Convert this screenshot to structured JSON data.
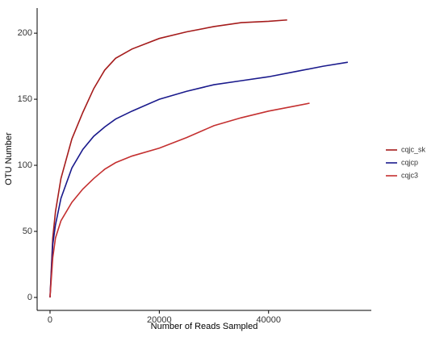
{
  "chart_data": {
    "type": "line",
    "x_label": "Number of Reads Sampled",
    "y_label": "OTU Number",
    "xlim": [
      -2360,
      58800
    ],
    "ylim": [
      -9.8,
      219
    ],
    "xticks": [
      0,
      20000,
      40000
    ],
    "yticks": [
      0,
      50,
      100,
      150,
      200
    ],
    "legend": "right",
    "series": [
      {
        "name": "cqjc_sk",
        "color": "#a51c1c",
        "x": [
          0,
          500,
          1000,
          2000,
          4000,
          6000,
          8000,
          10000,
          12000,
          15000,
          20000,
          25000,
          30000,
          35000,
          40000,
          43400
        ],
        "values": [
          0,
          45,
          65,
          90,
          120,
          140,
          158,
          172,
          181,
          188,
          196,
          201,
          205,
          208,
          209,
          210
        ]
      },
      {
        "name": "cqjcp",
        "color": "#1a1a8c",
        "x": [
          0,
          500,
          1000,
          2000,
          4000,
          6000,
          8000,
          10000,
          12000,
          15000,
          20000,
          25000,
          30000,
          35000,
          40000,
          45000,
          50000,
          54500
        ],
        "values": [
          0,
          40,
          55,
          75,
          98,
          112,
          122,
          129,
          135,
          141,
          150,
          156,
          161,
          164,
          167,
          171,
          175,
          178
        ]
      },
      {
        "name": "cqjc3",
        "color": "#c43030",
        "x": [
          0,
          500,
          1000,
          2000,
          4000,
          6000,
          8000,
          10000,
          12000,
          15000,
          20000,
          25000,
          30000,
          35000,
          40000,
          45000,
          47500
        ],
        "values": [
          0,
          30,
          45,
          58,
          72,
          82,
          90,
          97,
          102,
          107,
          113,
          121,
          130,
          136,
          141,
          145,
          147
        ]
      }
    ]
  }
}
